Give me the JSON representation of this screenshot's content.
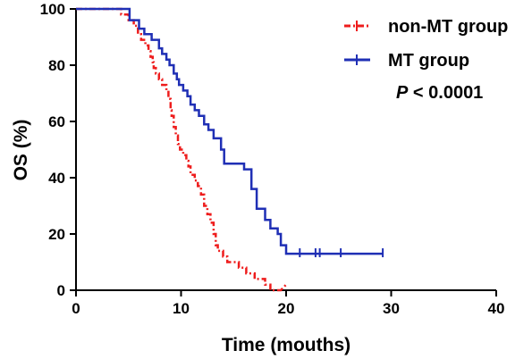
{
  "chart_data": {
    "type": "line",
    "subtype": "kaplan-meier step",
    "xlabel": "Time (mouths)",
    "ylabel": "OS (%)",
    "xlim": [
      0,
      40
    ],
    "ylim": [
      0,
      100
    ],
    "xticks": [
      0,
      10,
      20,
      30,
      40
    ],
    "yticks": [
      0,
      20,
      40,
      60,
      80,
      100
    ],
    "legend_position": "top-right",
    "annotation": {
      "italic": "P",
      "rest": " < 0.0001"
    },
    "grid": false,
    "series": [
      {
        "name": "non-MT group",
        "color": "#ee1c1c",
        "style": "dash-dot step",
        "points": [
          [
            0,
            100
          ],
          [
            4.3,
            100
          ],
          [
            4.3,
            98
          ],
          [
            5.0,
            98
          ],
          [
            5.0,
            96
          ],
          [
            5.5,
            96
          ],
          [
            5.5,
            94
          ],
          [
            5.9,
            94
          ],
          [
            5.9,
            91
          ],
          [
            6.2,
            91
          ],
          [
            6.2,
            89
          ],
          [
            6.6,
            89
          ],
          [
            6.6,
            87
          ],
          [
            6.9,
            87
          ],
          [
            6.9,
            85
          ],
          [
            7.1,
            85
          ],
          [
            7.1,
            83
          ],
          [
            7.3,
            83
          ],
          [
            7.3,
            81
          ],
          [
            7.4,
            81
          ],
          [
            7.4,
            79
          ],
          [
            7.6,
            79
          ],
          [
            7.6,
            77
          ],
          [
            7.9,
            77
          ],
          [
            7.9,
            75
          ],
          [
            8.2,
            75
          ],
          [
            8.2,
            73
          ],
          [
            8.6,
            73
          ],
          [
            8.6,
            71
          ],
          [
            8.8,
            71
          ],
          [
            8.8,
            68
          ],
          [
            9.0,
            68
          ],
          [
            9.0,
            64
          ],
          [
            9.1,
            64
          ],
          [
            9.1,
            62
          ],
          [
            9.3,
            62
          ],
          [
            9.3,
            58
          ],
          [
            9.5,
            58
          ],
          [
            9.5,
            55
          ],
          [
            9.7,
            55
          ],
          [
            9.7,
            52
          ],
          [
            9.9,
            52
          ],
          [
            9.9,
            50
          ],
          [
            10.2,
            50
          ],
          [
            10.2,
            48
          ],
          [
            10.5,
            48
          ],
          [
            10.5,
            46
          ],
          [
            10.7,
            46
          ],
          [
            10.7,
            44
          ],
          [
            10.9,
            44
          ],
          [
            10.9,
            41
          ],
          [
            11.3,
            41
          ],
          [
            11.3,
            39
          ],
          [
            11.6,
            39
          ],
          [
            11.6,
            37
          ],
          [
            11.9,
            37
          ],
          [
            11.9,
            34
          ],
          [
            12.2,
            34
          ],
          [
            12.2,
            30
          ],
          [
            12.5,
            30
          ],
          [
            12.5,
            27
          ],
          [
            12.8,
            27
          ],
          [
            12.8,
            24
          ],
          [
            13.1,
            24
          ],
          [
            13.1,
            20
          ],
          [
            13.3,
            20
          ],
          [
            13.3,
            16
          ],
          [
            13.5,
            16
          ],
          [
            13.5,
            14
          ],
          [
            14.0,
            14
          ],
          [
            14.0,
            12
          ],
          [
            14.4,
            12
          ],
          [
            14.4,
            10
          ],
          [
            15.5,
            10
          ],
          [
            15.5,
            8
          ],
          [
            16.2,
            8
          ],
          [
            16.2,
            6
          ],
          [
            17.0,
            6
          ],
          [
            17.0,
            4
          ],
          [
            18.0,
            4
          ],
          [
            18.0,
            2
          ],
          [
            18.5,
            2
          ],
          [
            18.5,
            0
          ],
          [
            19.5,
            0
          ],
          [
            20.0,
            2
          ]
        ]
      },
      {
        "name": "MT group",
        "color": "#1f2fb5",
        "style": "solid step",
        "points": [
          [
            0,
            100
          ],
          [
            5.1,
            100
          ],
          [
            5.1,
            96
          ],
          [
            6.0,
            96
          ],
          [
            6.0,
            93
          ],
          [
            6.5,
            93
          ],
          [
            6.5,
            91
          ],
          [
            7.2,
            91
          ],
          [
            7.2,
            89
          ],
          [
            7.9,
            89
          ],
          [
            7.9,
            86
          ],
          [
            8.2,
            86
          ],
          [
            8.2,
            84
          ],
          [
            8.6,
            84
          ],
          [
            8.6,
            82
          ],
          [
            8.9,
            82
          ],
          [
            8.9,
            80
          ],
          [
            9.3,
            80
          ],
          [
            9.3,
            77
          ],
          [
            9.6,
            77
          ],
          [
            9.6,
            75
          ],
          [
            9.8,
            75
          ],
          [
            9.8,
            73
          ],
          [
            10.2,
            73
          ],
          [
            10.2,
            71
          ],
          [
            10.6,
            71
          ],
          [
            10.6,
            69
          ],
          [
            10.9,
            69
          ],
          [
            10.9,
            66
          ],
          [
            11.3,
            66
          ],
          [
            11.3,
            64
          ],
          [
            11.7,
            64
          ],
          [
            11.7,
            62
          ],
          [
            12.2,
            62
          ],
          [
            12.2,
            59
          ],
          [
            12.6,
            59
          ],
          [
            12.6,
            57
          ],
          [
            13.1,
            57
          ],
          [
            13.1,
            54
          ],
          [
            13.8,
            54
          ],
          [
            13.8,
            50
          ],
          [
            14.1,
            50
          ],
          [
            14.1,
            45
          ],
          [
            16.0,
            45
          ],
          [
            16.0,
            43
          ],
          [
            16.7,
            43
          ],
          [
            16.7,
            36
          ],
          [
            17.2,
            36
          ],
          [
            17.2,
            29
          ],
          [
            18.0,
            29
          ],
          [
            18.0,
            25
          ],
          [
            18.5,
            25
          ],
          [
            18.5,
            22
          ],
          [
            19.2,
            22
          ],
          [
            19.2,
            20
          ],
          [
            19.5,
            20
          ],
          [
            19.5,
            16
          ],
          [
            20.0,
            16
          ],
          [
            20.0,
            13
          ],
          [
            29.2,
            13
          ]
        ],
        "censor_x": [
          21.3,
          22.8,
          23.2,
          25.2,
          29.2
        ]
      }
    ]
  }
}
